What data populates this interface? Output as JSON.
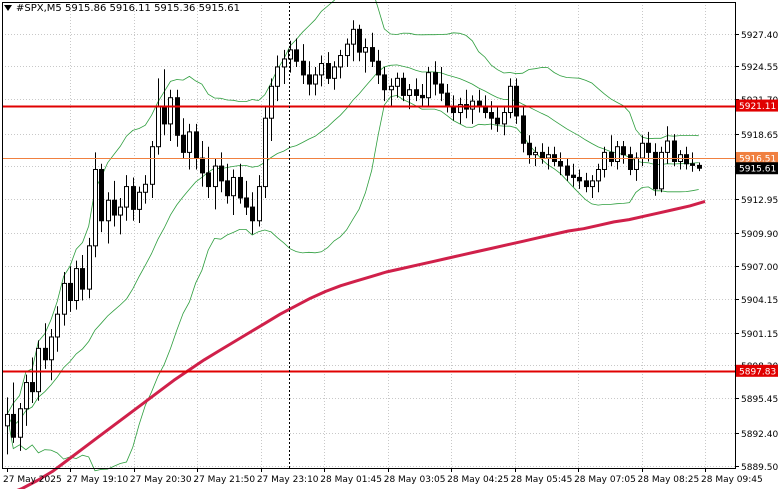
{
  "header": {
    "symbol": "#SPX,M5",
    "open": "5915.86",
    "high": "5916.11",
    "low": "5915.36",
    "close": "5915.61"
  },
  "chart_data": {
    "type": "candlestick",
    "y_ticks": [
      5927.4,
      5924.55,
      5921.7,
      5918.65,
      5915.8,
      5912.95,
      5909.9,
      5907.0,
      5904.15,
      5901.15,
      5898.3,
      5895.45,
      5892.4,
      5889.5
    ],
    "y_tick_labels": [
      "5927.40",
      "5924.55",
      "5921.70",
      "5918.65",
      "5915.80",
      "5912.95",
      "5909.90",
      "5907.00",
      "5904.15",
      "5901.15",
      "5898.30",
      "5895.45",
      "5892.40",
      "5889.50"
    ],
    "ylim": [
      5889.3,
      5930.2
    ],
    "x_labels": [
      "27 May 2025",
      "27 May 19:10",
      "27 May 20:30",
      "27 May 21:50",
      "27 May 23:10",
      "28 May 01:45",
      "28 May 03:05",
      "28 May 04:25",
      "28 May 05:45",
      "28 May 07:05",
      "28 May 08:25",
      "28 May 09:45"
    ],
    "bar_count": 112,
    "separator_label": "28 May 01:45",
    "levels": [
      {
        "price": 5921.11,
        "label": "5921.11",
        "color": "#e00000"
      },
      {
        "price": 5916.51,
        "label": "5916.51",
        "color": "#f08040"
      },
      {
        "price": 5897.83,
        "label": "5897.83",
        "color": "#e00000"
      }
    ],
    "current_price": {
      "price": 5915.61,
      "label": "5915.61"
    },
    "ma_color": "#d0204a",
    "bands_color": "#2e9e3e",
    "candle_color": "#000000",
    "ma": [
      5887.0,
      5887.5,
      5888.2,
      5889.0,
      5890.0,
      5891.0,
      5892.0,
      5893.0,
      5894.0,
      5895.0,
      5896.0,
      5897.0,
      5897.9,
      5898.8,
      5899.6,
      5900.4,
      5901.2,
      5902.0,
      5902.8,
      5903.5,
      5904.2,
      5904.8,
      5905.3,
      5905.7,
      5906.1,
      5906.5,
      5906.8,
      5907.1,
      5907.4,
      5907.7,
      5908.0,
      5908.3,
      5908.6,
      5908.9,
      5909.2,
      5909.5,
      5909.8,
      5910.1,
      5910.3,
      5910.6,
      5910.9,
      5911.1,
      5911.4,
      5911.7,
      5912.0,
      5912.3,
      5912.7
    ],
    "candles": [
      [
        5893.0,
        5895.5,
        5890.5,
        5894.0
      ],
      [
        5894.0,
        5896.8,
        5891.5,
        5892.0
      ],
      [
        5892.0,
        5895.0,
        5890.8,
        5894.5
      ],
      [
        5894.5,
        5897.5,
        5893.0,
        5896.8
      ],
      [
        5896.8,
        5899.0,
        5895.0,
        5896.0
      ],
      [
        5896.0,
        5900.5,
        5895.2,
        5899.8
      ],
      [
        5899.8,
        5902.0,
        5898.0,
        5898.8
      ],
      [
        5898.8,
        5901.5,
        5897.0,
        5900.8
      ],
      [
        5900.8,
        5903.5,
        5899.5,
        5902.8
      ],
      [
        5902.8,
        5906.5,
        5901.8,
        5905.5
      ],
      [
        5905.5,
        5907.0,
        5903.0,
        5904.0
      ],
      [
        5904.0,
        5907.5,
        5903.2,
        5906.8
      ],
      [
        5906.8,
        5908.0,
        5904.0,
        5905.0
      ],
      [
        5905.0,
        5909.5,
        5904.2,
        5908.8
      ],
      [
        5908.8,
        5917.0,
        5907.8,
        5915.5
      ],
      [
        5915.5,
        5916.0,
        5910.0,
        5911.0
      ],
      [
        5911.0,
        5913.5,
        5909.0,
        5912.8
      ],
      [
        5912.8,
        5914.5,
        5910.5,
        5911.5
      ],
      [
        5911.5,
        5913.0,
        5909.8,
        5912.2
      ],
      [
        5912.2,
        5915.0,
        5911.0,
        5914.0
      ],
      [
        5914.0,
        5914.8,
        5911.0,
        5912.0
      ],
      [
        5912.0,
        5914.0,
        5910.8,
        5913.5
      ],
      [
        5913.5,
        5915.0,
        5912.5,
        5914.2
      ],
      [
        5914.2,
        5918.0,
        5913.0,
        5917.5
      ],
      [
        5917.5,
        5923.5,
        5916.8,
        5921.0
      ],
      [
        5921.0,
        5924.3,
        5918.5,
        5919.5
      ],
      [
        5919.5,
        5922.5,
        5918.0,
        5921.8
      ],
      [
        5921.8,
        5922.5,
        5917.5,
        5918.5
      ],
      [
        5918.5,
        5920.0,
        5916.5,
        5917.0
      ],
      [
        5917.0,
        5919.5,
        5915.5,
        5918.8
      ],
      [
        5918.8,
        5919.5,
        5915.5,
        5916.5
      ],
      [
        5916.5,
        5918.0,
        5914.0,
        5915.2
      ],
      [
        5915.2,
        5917.5,
        5913.0,
        5914.0
      ],
      [
        5914.0,
        5916.5,
        5912.0,
        5915.8
      ],
      [
        5915.8,
        5917.0,
        5913.5,
        5914.5
      ],
      [
        5914.5,
        5916.0,
        5912.5,
        5913.2
      ],
      [
        5913.2,
        5915.5,
        5911.5,
        5914.8
      ],
      [
        5914.8,
        5916.0,
        5912.5,
        5913.0
      ],
      [
        5913.0,
        5914.5,
        5911.5,
        5912.2
      ],
      [
        5912.2,
        5913.5,
        5909.8,
        5911.0
      ],
      [
        5911.0,
        5915.0,
        5910.5,
        5914.0
      ],
      [
        5914.0,
        5921.0,
        5913.0,
        5920.0
      ],
      [
        5920.0,
        5923.5,
        5918.0,
        5922.8
      ],
      [
        5922.8,
        5925.5,
        5921.5,
        5924.5
      ],
      [
        5924.5,
        5926.0,
        5923.0,
        5925.2
      ],
      [
        5925.2,
        5926.8,
        5924.0,
        5926.0
      ],
      [
        5926.0,
        5927.0,
        5924.5,
        5925.0
      ],
      [
        5925.0,
        5926.5,
        5923.0,
        5923.8
      ],
      [
        5923.8,
        5925.0,
        5922.0,
        5923.0
      ],
      [
        5923.0,
        5924.5,
        5922.0,
        5923.8
      ],
      [
        5923.8,
        5925.5,
        5922.8,
        5924.8
      ],
      [
        5924.8,
        5925.8,
        5923.0,
        5923.5
      ],
      [
        5923.5,
        5925.0,
        5922.5,
        5924.5
      ],
      [
        5924.5,
        5926.0,
        5923.5,
        5925.5
      ],
      [
        5925.5,
        5927.0,
        5924.5,
        5926.5
      ],
      [
        5926.5,
        5928.6,
        5925.0,
        5927.8
      ],
      [
        5927.8,
        5928.2,
        5925.0,
        5925.8
      ],
      [
        5925.8,
        5927.0,
        5924.0,
        5926.2
      ],
      [
        5926.2,
        5927.5,
        5924.5,
        5925.0
      ],
      [
        5925.0,
        5926.0,
        5923.0,
        5923.8
      ],
      [
        5923.8,
        5924.5,
        5921.5,
        5922.5
      ],
      [
        5922.5,
        5923.5,
        5921.0,
        5922.8
      ],
      [
        5922.8,
        5924.0,
        5921.8,
        5923.5
      ],
      [
        5923.5,
        5924.0,
        5921.5,
        5922.0
      ],
      [
        5922.0,
        5923.0,
        5920.8,
        5922.5
      ],
      [
        5922.5,
        5923.5,
        5921.5,
        5922.0
      ],
      [
        5922.0,
        5923.0,
        5921.0,
        5921.8
      ],
      [
        5921.8,
        5924.5,
        5921.0,
        5924.0
      ],
      [
        5924.0,
        5925.0,
        5922.0,
        5923.0
      ],
      [
        5923.0,
        5924.5,
        5921.5,
        5922.2
      ],
      [
        5922.2,
        5923.0,
        5920.5,
        5921.0
      ],
      [
        5921.0,
        5922.0,
        5919.8,
        5920.5
      ],
      [
        5920.5,
        5921.8,
        5919.5,
        5921.2
      ],
      [
        5921.2,
        5922.5,
        5920.0,
        5920.8
      ],
      [
        5920.8,
        5922.0,
        5919.5,
        5921.5
      ],
      [
        5921.5,
        5922.5,
        5920.5,
        5921.0
      ],
      [
        5921.0,
        5922.0,
        5920.0,
        5920.5
      ],
      [
        5920.5,
        5921.5,
        5919.0,
        5920.0
      ],
      [
        5920.0,
        5921.0,
        5918.8,
        5919.5
      ],
      [
        5919.5,
        5921.0,
        5918.5,
        5920.5
      ],
      [
        5920.5,
        5923.5,
        5920.0,
        5922.8
      ],
      [
        5922.8,
        5923.5,
        5919.5,
        5920.2
      ],
      [
        5920.2,
        5921.0,
        5917.0,
        5917.8
      ],
      [
        5917.8,
        5918.5,
        5916.0,
        5916.8
      ],
      [
        5916.8,
        5917.5,
        5915.8,
        5917.0
      ],
      [
        5917.0,
        5917.8,
        5916.0,
        5916.5
      ],
      [
        5916.5,
        5917.5,
        5915.5,
        5916.8
      ],
      [
        5916.8,
        5917.5,
        5915.8,
        5916.2
      ],
      [
        5916.2,
        5917.0,
        5915.0,
        5915.8
      ],
      [
        5915.8,
        5916.5,
        5914.5,
        5915.0
      ],
      [
        5915.0,
        5916.0,
        5914.0,
        5914.8
      ],
      [
        5914.8,
        5915.5,
        5913.8,
        5914.5
      ],
      [
        5914.5,
        5915.2,
        5913.5,
        5914.0
      ],
      [
        5914.0,
        5915.0,
        5913.0,
        5914.5
      ],
      [
        5914.5,
        5916.0,
        5913.5,
        5915.5
      ],
      [
        5915.5,
        5917.5,
        5914.8,
        5917.0
      ],
      [
        5917.0,
        5918.5,
        5915.8,
        5916.2
      ],
      [
        5916.2,
        5918.0,
        5915.5,
        5917.5
      ],
      [
        5917.5,
        5918.0,
        5916.0,
        5916.8
      ],
      [
        5916.8,
        5917.5,
        5915.0,
        5915.5
      ],
      [
        5915.5,
        5917.0,
        5914.5,
        5916.5
      ],
      [
        5916.5,
        5918.5,
        5915.8,
        5917.8
      ],
      [
        5917.8,
        5918.8,
        5916.2,
        5917.0
      ],
      [
        5917.0,
        5917.8,
        5913.2,
        5913.8
      ],
      [
        5913.8,
        5917.5,
        5913.5,
        5917.0
      ],
      [
        5917.0,
        5919.3,
        5916.0,
        5918.0
      ],
      [
        5918.0,
        5918.6,
        5915.8,
        5916.2
      ],
      [
        5916.2,
        5917.2,
        5915.5,
        5916.8
      ],
      [
        5916.8,
        5917.5,
        5915.5,
        5916.0
      ],
      [
        5916.0,
        5917.0,
        5915.3,
        5915.86
      ],
      [
        5915.86,
        5916.11,
        5915.36,
        5915.61
      ]
    ]
  }
}
